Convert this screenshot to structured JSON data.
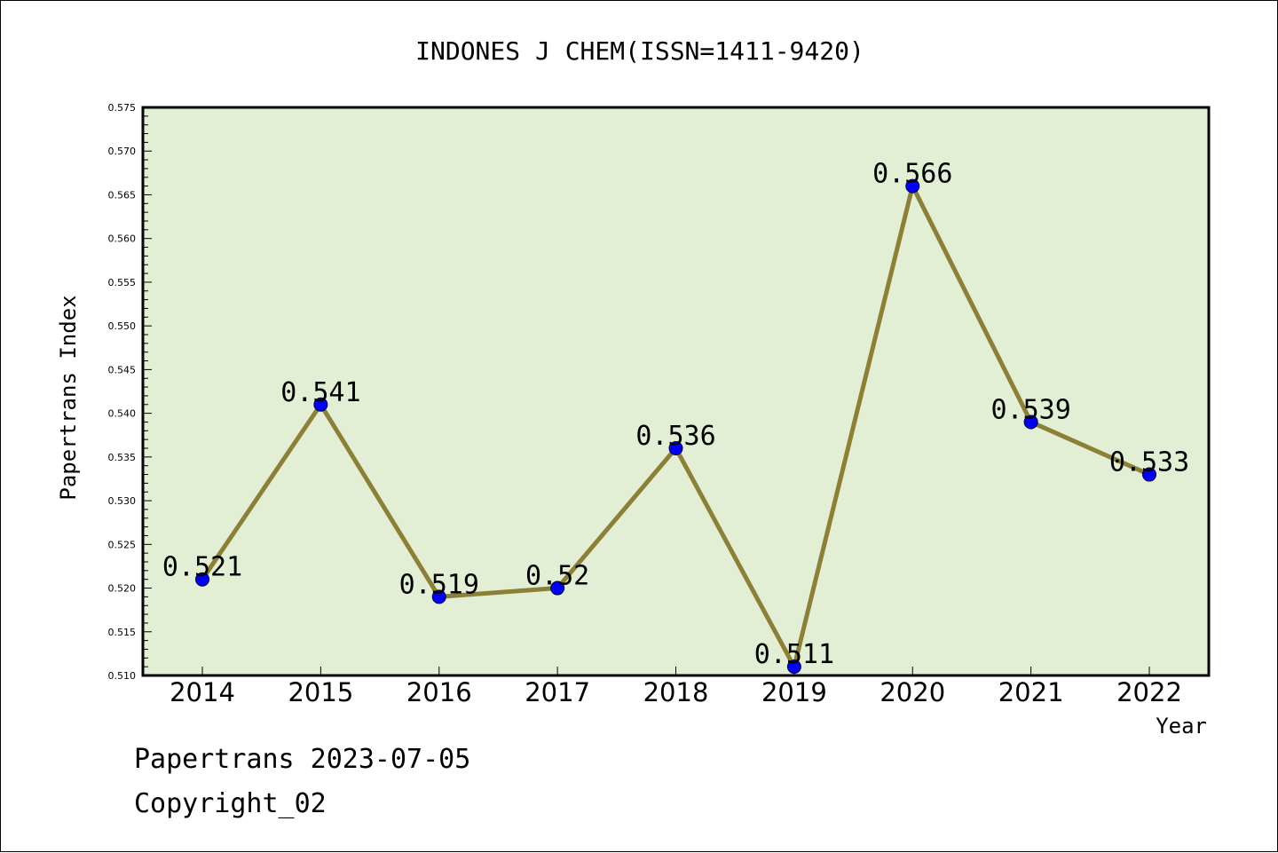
{
  "chart_data": {
    "type": "line",
    "title": "INDONES J CHEM(ISSN=1411-9420)",
    "xlabel": "Year",
    "ylabel": "Papertrans Index",
    "categories": [
      "2014",
      "2015",
      "2016",
      "2017",
      "2018",
      "2019",
      "2020",
      "2021",
      "2022"
    ],
    "series": [
      {
        "values": [
          0.521,
          0.541,
          0.519,
          0.52,
          0.536,
          0.511,
          0.566,
          0.539,
          0.533
        ],
        "labels": [
          "0.521",
          "0.541",
          "0.519",
          "0.52",
          "0.536",
          "0.511",
          "0.566",
          "0.539",
          "0.533"
        ],
        "line_color": "#8b8036",
        "marker_color": "#0000ff"
      }
    ],
    "ylim": [
      0.51,
      0.575
    ],
    "yticks": [
      "0.510",
      "0.515",
      "0.520",
      "0.525",
      "0.530",
      "0.535",
      "0.540",
      "0.545",
      "0.550",
      "0.555",
      "0.560",
      "0.565",
      "0.570",
      "0.575"
    ],
    "plot_background": "#e2efd4",
    "grid": false,
    "legend": "none"
  },
  "footer": {
    "line1": "Papertrans 2023-07-05",
    "line2": "Copyright_02"
  }
}
